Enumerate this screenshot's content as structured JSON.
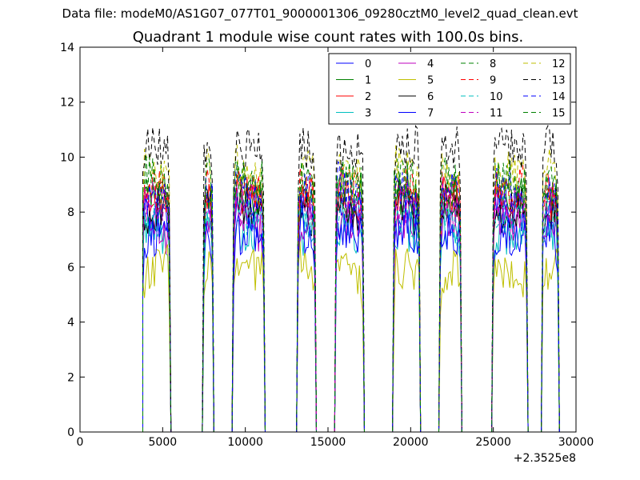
{
  "header": {
    "suptitle": "Data file: modeM0/AS1G07_077T01_9000001306_09280cztM0_level2_quad_clean.evt"
  },
  "chart_data": {
    "type": "line",
    "title": "Quadrant 1 module wise count rates with 100.0s bins.",
    "xlabel": "",
    "ylabel": "",
    "x_offset_label": "+2.3525e8",
    "xlim": [
      0,
      30000
    ],
    "ylim": [
      0,
      14
    ],
    "x_ticks": [
      0,
      5000,
      10000,
      15000,
      20000,
      25000,
      30000
    ],
    "x_tick_labels": [
      "0",
      "5000",
      "10000",
      "15000",
      "20000",
      "25000",
      "30000"
    ],
    "y_ticks": [
      0,
      2,
      4,
      6,
      8,
      10,
      12,
      14
    ],
    "y_tick_labels": [
      "0",
      "2",
      "4",
      "6",
      "8",
      "10",
      "12",
      "14"
    ],
    "grid": false,
    "legend_position": "top-right",
    "legend_columns": 4,
    "active_segments": [
      [
        3800,
        5400
      ],
      [
        7500,
        8000
      ],
      [
        9300,
        11100
      ],
      [
        13200,
        14200
      ],
      [
        15500,
        17100
      ],
      [
        19000,
        20500
      ],
      [
        21800,
        23000
      ],
      [
        25000,
        27000
      ],
      [
        28000,
        28900
      ]
    ],
    "gap_value": 0,
    "series": [
      {
        "name": "0",
        "color": "#0000ff",
        "dashed": false,
        "level": 8.0
      },
      {
        "name": "1",
        "color": "#008000",
        "dashed": false,
        "level": 8.6
      },
      {
        "name": "2",
        "color": "#ff0000",
        "dashed": false,
        "level": 8.5
      },
      {
        "name": "3",
        "color": "#00bfbf",
        "dashed": false,
        "level": 7.3
      },
      {
        "name": "4",
        "color": "#bf00bf",
        "dashed": false,
        "level": 7.6
      },
      {
        "name": "5",
        "color": "#bfbf00",
        "dashed": false,
        "level": 5.9
      },
      {
        "name": "6",
        "color": "#000000",
        "dashed": false,
        "level": 8.1
      },
      {
        "name": "7",
        "color": "#0000ff",
        "dashed": false,
        "level": 7.2
      },
      {
        "name": "8",
        "color": "#008000",
        "dashed": true,
        "level": 8.9
      },
      {
        "name": "9",
        "color": "#ff0000",
        "dashed": true,
        "level": 8.8
      },
      {
        "name": "10",
        "color": "#00bfbf",
        "dashed": true,
        "level": 7.8
      },
      {
        "name": "11",
        "color": "#bf00bf",
        "dashed": true,
        "level": 8.4
      },
      {
        "name": "12",
        "color": "#bfbf00",
        "dashed": true,
        "level": 9.5
      },
      {
        "name": "13",
        "color": "#000000",
        "dashed": true,
        "level": 10.3
      },
      {
        "name": "14",
        "color": "#0000ff",
        "dashed": true,
        "level": 8.7
      },
      {
        "name": "15",
        "color": "#008000",
        "dashed": true,
        "level": 9.1
      }
    ]
  }
}
